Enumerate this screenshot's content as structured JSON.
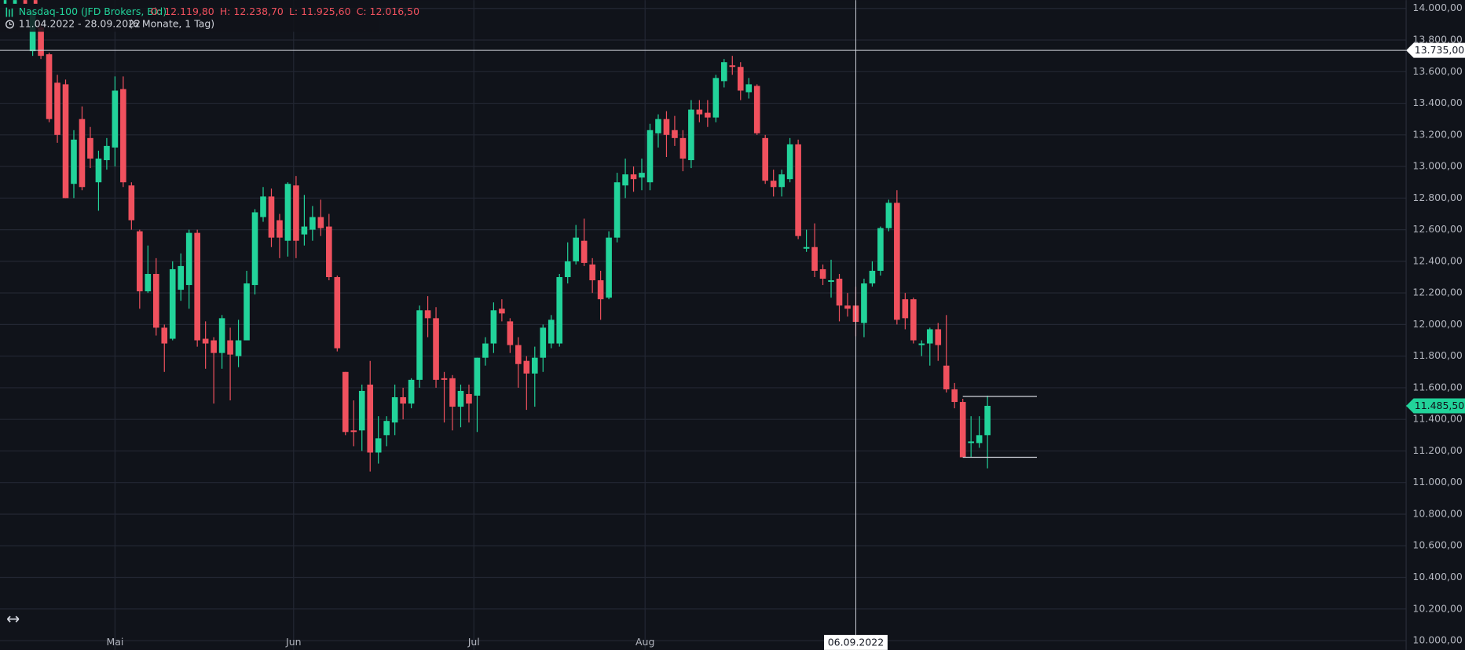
{
  "chart_data": {
    "type": "candlestick",
    "title": "Nasdaq-100 (JFD Brokers, Bid)",
    "ohlc_labels": [
      "O: 12.119,80",
      "H: 12.238,70",
      "L: 11.925,60",
      "C: 12.016,50"
    ],
    "period": "11.04.2022 - 28.09.2022",
    "period_note": "(6 Monate, 1 Tag)",
    "up_color": "#22d39a",
    "down_color": "#f0515e",
    "grid": true,
    "ylim": [
      9941,
      14053
    ],
    "yticks": [
      {
        "value": 14000,
        "label": "14.000,00"
      },
      {
        "value": 13800,
        "label": "13.800,00"
      },
      {
        "value": 13600,
        "label": "13.600,00"
      },
      {
        "value": 13400,
        "label": "13.400,00"
      },
      {
        "value": 13200,
        "label": "13.200,00"
      },
      {
        "value": 13000,
        "label": "13.000,00"
      },
      {
        "value": 12800,
        "label": "12.800,00"
      },
      {
        "value": 12600,
        "label": "12.600,00"
      },
      {
        "value": 12400,
        "label": "12.400,00"
      },
      {
        "value": 12200,
        "label": "12.200,00"
      },
      {
        "value": 12000,
        "label": "12.000,00"
      },
      {
        "value": 11800,
        "label": "11.800,00"
      },
      {
        "value": 11600,
        "label": "11.600,00"
      },
      {
        "value": 11400,
        "label": "11.400,00"
      },
      {
        "value": 11200,
        "label": "11.200,00"
      },
      {
        "value": 11000,
        "label": "11.000,00"
      },
      {
        "value": 10800,
        "label": "10.800,00"
      },
      {
        "value": 10600,
        "label": "10.600,00"
      },
      {
        "value": 10400,
        "label": "10.400,00"
      },
      {
        "value": 10200,
        "label": "10.200,00"
      },
      {
        "value": 10000,
        "label": "10.000,00"
      }
    ],
    "xlim": [
      -3.97,
      166.86
    ],
    "xticks": [
      {
        "value": 10,
        "label": "Mai"
      },
      {
        "value": 31.7,
        "label": "Jun"
      },
      {
        "value": 53.6,
        "label": "Jul"
      },
      {
        "value": 74.4,
        "label": "Aug"
      }
    ],
    "ohlc": [
      [
        13730,
        13990,
        13700,
        13980
      ],
      [
        13880,
        13900,
        13680,
        13700
      ],
      [
        13710,
        13720,
        13280,
        13300
      ],
      [
        13530,
        13580,
        13150,
        13200
      ],
      [
        13520,
        13550,
        12800,
        12800
      ],
      [
        12890,
        13230,
        12800,
        13170
      ],
      [
        13300,
        13380,
        12850,
        12870
      ],
      [
        13180,
        13250,
        12990,
        13050
      ],
      [
        12900,
        13100,
        12720,
        13050
      ],
      [
        13040,
        13180,
        12980,
        13130
      ],
      [
        13120,
        13570,
        13000,
        13480
      ],
      [
        13490,
        13570,
        12870,
        12900
      ],
      [
        12880,
        12900,
        12600,
        12660
      ],
      [
        12590,
        12600,
        12100,
        12210
      ],
      [
        12210,
        12500,
        12200,
        12320
      ],
      [
        12320,
        12420,
        11930,
        11980
      ],
      [
        11980,
        12000,
        11700,
        11880
      ],
      [
        11910,
        12400,
        11900,
        12350
      ],
      [
        12220,
        12450,
        12150,
        12370
      ],
      [
        12250,
        12600,
        12100,
        12580
      ],
      [
        12580,
        12600,
        11860,
        11900
      ],
      [
        11910,
        12020,
        11720,
        11880
      ],
      [
        11900,
        11920,
        11500,
        11820
      ],
      [
        11820,
        12060,
        11720,
        12040
      ],
      [
        11900,
        11980,
        11520,
        11810
      ],
      [
        11800,
        12030,
        11730,
        11900
      ],
      [
        11900,
        12340,
        11900,
        12260
      ],
      [
        12250,
        12730,
        12190,
        12710
      ],
      [
        12680,
        12870,
        12650,
        12810
      ],
      [
        12810,
        12860,
        12490,
        12550
      ],
      [
        12660,
        12700,
        12420,
        12550
      ],
      [
        12530,
        12900,
        12430,
        12890
      ],
      [
        12880,
        12940,
        12420,
        12530
      ],
      [
        12570,
        12820,
        12500,
        12620
      ],
      [
        12600,
        12750,
        12530,
        12680
      ],
      [
        12680,
        12790,
        12560,
        12610
      ],
      [
        12620,
        12700,
        12280,
        12300
      ],
      [
        12300,
        12310,
        11830,
        11850
      ],
      [
        11700,
        11700,
        11300,
        11320
      ],
      [
        11330,
        11520,
        11230,
        11320
      ],
      [
        11330,
        11620,
        11200,
        11580
      ],
      [
        11620,
        11770,
        11070,
        11190
      ],
      [
        11190,
        11420,
        11120,
        11280
      ],
      [
        11300,
        11420,
        11230,
        11390
      ],
      [
        11380,
        11620,
        11300,
        11540
      ],
      [
        11540,
        11600,
        11400,
        11500
      ],
      [
        11500,
        11660,
        11470,
        11650
      ],
      [
        11650,
        12120,
        11600,
        12090
      ],
      [
        12090,
        12180,
        11920,
        12040
      ],
      [
        12040,
        12110,
        11600,
        11650
      ],
      [
        11660,
        11700,
        11380,
        11650
      ],
      [
        11660,
        11680,
        11330,
        11480
      ],
      [
        11480,
        11620,
        11350,
        11580
      ],
      [
        11560,
        11620,
        11380,
        11500
      ],
      [
        11550,
        11790,
        11320,
        11790
      ],
      [
        11790,
        11920,
        11740,
        11880
      ],
      [
        11880,
        12140,
        11820,
        12090
      ],
      [
        12100,
        12160,
        12020,
        12070
      ],
      [
        12020,
        12040,
        11820,
        11870
      ],
      [
        11870,
        11920,
        11600,
        11750
      ],
      [
        11770,
        11800,
        11460,
        11690
      ],
      [
        11690,
        11860,
        11480,
        11790
      ],
      [
        11790,
        12000,
        11700,
        11980
      ],
      [
        11880,
        12060,
        11850,
        12030
      ],
      [
        11880,
        12320,
        11860,
        12300
      ],
      [
        12300,
        12520,
        12260,
        12400
      ],
      [
        12400,
        12630,
        12380,
        12550
      ],
      [
        12530,
        12670,
        12370,
        12390
      ],
      [
        12380,
        12420,
        12200,
        12280
      ],
      [
        12280,
        12340,
        12030,
        12160
      ],
      [
        12170,
        12590,
        12160,
        12550
      ],
      [
        12550,
        12960,
        12520,
        12900
      ],
      [
        12880,
        13050,
        12800,
        12950
      ],
      [
        12950,
        13000,
        12840,
        12920
      ],
      [
        12930,
        13050,
        12850,
        12960
      ],
      [
        12900,
        13270,
        12850,
        13230
      ],
      [
        13210,
        13330,
        13120,
        13300
      ],
      [
        13300,
        13350,
        13060,
        13200
      ],
      [
        13230,
        13320,
        13130,
        13180
      ],
      [
        13180,
        13230,
        12970,
        13050
      ],
      [
        13040,
        13420,
        12990,
        13360
      ],
      [
        13360,
        13420,
        13280,
        13330
      ],
      [
        13340,
        13420,
        13250,
        13310
      ],
      [
        13310,
        13580,
        13280,
        13560
      ],
      [
        13540,
        13680,
        13500,
        13660
      ],
      [
        13640,
        13700,
        13580,
        13630
      ],
      [
        13630,
        13660,
        13420,
        13480
      ],
      [
        13470,
        13560,
        13430,
        13520
      ],
      [
        13510,
        13520,
        13200,
        13210
      ],
      [
        13180,
        13200,
        12890,
        12910
      ],
      [
        12910,
        12980,
        12810,
        12870
      ],
      [
        12870,
        12980,
        12810,
        12950
      ],
      [
        12920,
        13180,
        12900,
        13140
      ],
      [
        13140,
        13170,
        12540,
        12560
      ],
      [
        12480,
        12600,
        12460,
        12490
      ],
      [
        12490,
        12640,
        12300,
        12340
      ],
      [
        12350,
        12380,
        12250,
        12290
      ],
      [
        12270,
        12410,
        12170,
        12280
      ],
      [
        12290,
        12320,
        12020,
        12120
      ],
      [
        12120,
        12200,
        12050,
        12100
      ],
      [
        12119.8,
        12238.7,
        11925.6,
        12016.5
      ],
      [
        12010,
        12290,
        11920,
        12260
      ],
      [
        12260,
        12400,
        12240,
        12340
      ],
      [
        12340,
        12620,
        12310,
        12610
      ],
      [
        12610,
        12790,
        12590,
        12770
      ],
      [
        12770,
        12850,
        12000,
        12030
      ],
      [
        12160,
        12200,
        11970,
        12040
      ],
      [
        12160,
        12170,
        11880,
        11900
      ],
      [
        11870,
        11900,
        11800,
        11880
      ],
      [
        11880,
        11980,
        11740,
        11970
      ],
      [
        11970,
        12010,
        11770,
        11870
      ],
      [
        11740,
        12060,
        11570,
        11590
      ],
      [
        11590,
        11630,
        11470,
        11510
      ],
      [
        11510,
        11530,
        11160,
        11160
      ],
      [
        11250,
        11420,
        11160,
        11260
      ],
      [
        11250,
        11420,
        11220,
        11300
      ],
      [
        11300,
        11550,
        11090,
        11485.5
      ]
    ],
    "last_price": {
      "value": 11485.5,
      "label": "11.485,50"
    },
    "crosshair": {
      "x": 100,
      "x_label": "06.09.2022",
      "y": 13735,
      "y_label": "13.735,00"
    },
    "range_box": {
      "upper": 11545,
      "lower": 11160,
      "from": 113,
      "to": 122
    }
  }
}
